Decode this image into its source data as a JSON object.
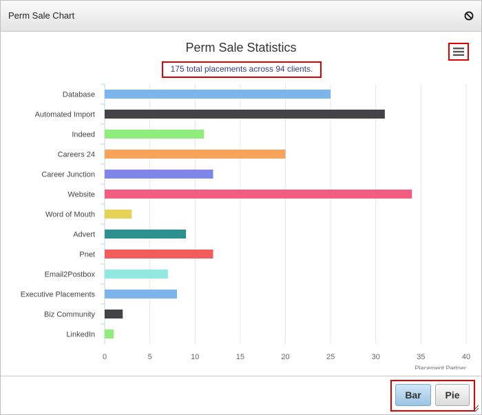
{
  "window": {
    "title": "Perm Sale Chart",
    "close_icon": "close-icon"
  },
  "menu": {
    "icon": "hamburger-menu-icon"
  },
  "buttons": {
    "bar_label": "Bar",
    "pie_label": "Pie",
    "selected": "Bar"
  },
  "chart_data": {
    "type": "bar",
    "orientation": "horizontal",
    "title": "Perm Sale Statistics",
    "subtitle": "175 total placements across 94 clients.",
    "xlabel": "",
    "ylabel": "Placement Partner",
    "xlim": [
      0,
      40
    ],
    "xticks": [
      "0",
      "5",
      "10",
      "15",
      "20",
      "25",
      "30",
      "35",
      "40"
    ],
    "grid": true,
    "categories": [
      "Database",
      "Automated Import",
      "Indeed",
      "Careers 24",
      "Career Junction",
      "Website",
      "Word of Mouth",
      "Advert",
      "Pnet",
      "Email2Postbox",
      "Executive Placements",
      "Biz Community",
      "LinkedIn"
    ],
    "values": [
      25,
      31,
      11,
      20,
      12,
      34,
      3,
      9,
      12,
      7,
      8,
      2,
      1
    ],
    "colors": [
      "#7cb5ec",
      "#434348",
      "#90ed7d",
      "#f7a35c",
      "#8085e9",
      "#f15c80",
      "#e4d354",
      "#2b908f",
      "#f45b5b",
      "#91e8e1",
      "#7cb5ec",
      "#434348",
      "#90ed7d"
    ]
  }
}
